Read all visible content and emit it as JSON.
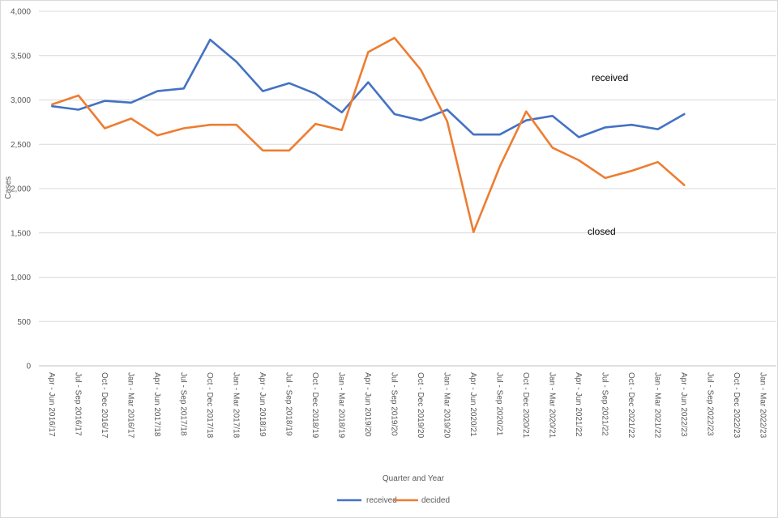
{
  "chart_data": {
    "type": "line",
    "title": "",
    "xlabel": "Quarter and Year",
    "ylabel": "Cases",
    "ylim": [
      0,
      4000
    ],
    "ytick_step": 500,
    "ytick_labels": [
      "0",
      "500",
      "1,000",
      "1,500",
      "2,000",
      "2,500",
      "3,000",
      "3,500",
      "4,000"
    ],
    "grid": "horizontal",
    "legend_position": "bottom",
    "categories": [
      "Apr - Jun 2016/17",
      "Jul - Sep 2016/17",
      "Oct - Dec 2016/17",
      "Jan - Mar 2016/17",
      "Apr - Jun 2017/18",
      "Jul - Sep 2017/18",
      "Oct - Dec 2017/18",
      "Jan - Mar 2017/18",
      "Apr - Jun 2018/19",
      "Jul - Sep 2018/19",
      "Oct - Dec 2018/19",
      "Jan - Mar 2018/19",
      "Apr - Jun 2019/20",
      "Jul - Sep 2019/20",
      "Oct - Dec 2019/20",
      "Jan - Mar 2019/20",
      "Apr - Jun 2020/21",
      "Jul - Sep 2020/21",
      "Oct - Dec 2020/21",
      "Jan - Mar 2020/21",
      "Apr - Jun 2021/22",
      "Jul - Sep 2021/22",
      "Oct - Dec 2021/22",
      "Jan - Mar 2021/22",
      "Apr - Jun 2022/23",
      "Jul - Sep 2022/23",
      "Oct - Dec 2022/23",
      "Jan - Mar 2022/23"
    ],
    "series": [
      {
        "name": "received",
        "color": "#4472c4",
        "values": [
          2930,
          2890,
          2990,
          2970,
          3100,
          3130,
          3680,
          3430,
          3100,
          3190,
          3070,
          2860,
          3200,
          2840,
          2770,
          2890,
          2610,
          2610,
          2770,
          2820,
          2580,
          2690,
          2720,
          2670,
          2840,
          null,
          null,
          null
        ]
      },
      {
        "name": "decided",
        "color": "#ed7d31",
        "values": [
          2950,
          3050,
          2680,
          2790,
          2600,
          2680,
          2720,
          2720,
          2430,
          2430,
          2730,
          2660,
          3540,
          3700,
          3340,
          2760,
          1510,
          2250,
          2870,
          2460,
          2320,
          2120,
          2200,
          2300,
          2040,
          null,
          null,
          null
        ]
      }
    ],
    "annotations": [
      {
        "text": "received",
        "series": "received"
      },
      {
        "text": "closed",
        "series": "decided"
      }
    ]
  }
}
